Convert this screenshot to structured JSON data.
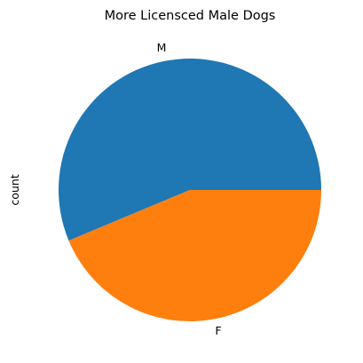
{
  "chart_data": {
    "type": "pie",
    "title": "More Licensced Male Dogs",
    "ylabel": "count",
    "labels": [
      "M",
      "F"
    ],
    "values": [
      56.3,
      43.7
    ],
    "colors": [
      "#1f77b4",
      "#ff7f0e"
    ],
    "startangle": 0,
    "direction": "counterclockwise"
  }
}
